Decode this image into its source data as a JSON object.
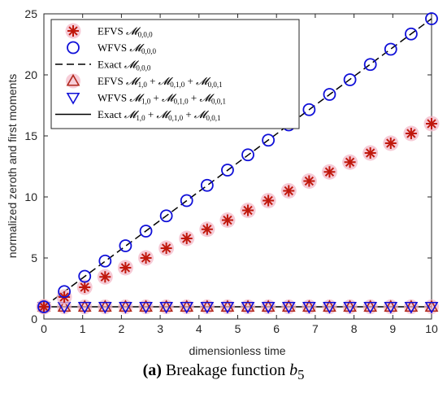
{
  "chart_data": {
    "type": "scatter",
    "xlabel": "dimensionless time",
    "ylabel": "normalized zeroth and first moments",
    "xlim": [
      0,
      10
    ],
    "ylim": [
      0,
      25
    ],
    "xticks": [
      0,
      1,
      2,
      3,
      4,
      5,
      6,
      7,
      8,
      9,
      10
    ],
    "yticks": [
      0,
      5,
      10,
      15,
      20,
      25
    ],
    "legend_position": "top-left",
    "series": [
      {
        "name": "EFVS 𝓜0,0,0",
        "marker": "asterisk",
        "color": "#c0180c",
        "x": [
          0,
          0.526,
          1.053,
          1.579,
          2.105,
          2.632,
          3.158,
          3.684,
          4.211,
          4.737,
          5.263,
          5.789,
          6.316,
          6.842,
          7.368,
          7.895,
          8.421,
          8.947,
          9.474,
          10
        ],
        "y": [
          1.0,
          1.8,
          2.6,
          3.45,
          4.2,
          5.0,
          5.8,
          6.6,
          7.35,
          8.1,
          8.9,
          9.7,
          10.5,
          11.3,
          12.05,
          12.85,
          13.6,
          14.4,
          15.2,
          16.0
        ]
      },
      {
        "name": "WFVS 𝓜0,0,0",
        "marker": "circle",
        "color": "#1010d8",
        "x": [
          0,
          0.526,
          1.053,
          1.579,
          2.105,
          2.632,
          3.158,
          3.684,
          4.211,
          4.737,
          5.263,
          5.789,
          6.316,
          6.842,
          7.368,
          7.895,
          8.421,
          8.947,
          9.474,
          10
        ],
        "y": [
          1.0,
          2.25,
          3.5,
          4.75,
          6.0,
          7.2,
          8.45,
          9.7,
          10.95,
          12.2,
          13.45,
          14.65,
          15.9,
          17.15,
          18.4,
          19.6,
          20.85,
          22.1,
          23.35,
          24.6
        ]
      },
      {
        "name": "Exact 𝓜0,0,0",
        "line": "dashed",
        "color": "#000000",
        "x": [
          0,
          10
        ],
        "y": [
          1.0,
          24.6
        ]
      },
      {
        "name": "EFVS 𝓜1,0 + 𝓜0,1,0 + 𝓜0,0,1",
        "marker": "triangle-up",
        "color": "#b0281c",
        "x": [
          0,
          0.526,
          1.053,
          1.579,
          2.105,
          2.632,
          3.158,
          3.684,
          4.211,
          4.737,
          5.263,
          5.789,
          6.316,
          6.842,
          7.368,
          7.895,
          8.421,
          8.947,
          9.474,
          10
        ],
        "y": [
          1,
          1,
          1,
          1,
          1,
          1,
          1,
          1,
          1,
          1,
          1,
          1,
          1,
          1,
          1,
          1,
          1,
          1,
          1,
          1
        ]
      },
      {
        "name": "WFVS 𝓜1,0 + 𝓜0,1,0 + 𝓜0,0,1",
        "marker": "triangle-down",
        "color": "#1010d8",
        "x": [
          0,
          0.526,
          1.053,
          1.579,
          2.105,
          2.632,
          3.158,
          3.684,
          4.211,
          4.737,
          5.263,
          5.789,
          6.316,
          6.842,
          7.368,
          7.895,
          8.421,
          8.947,
          9.474,
          10
        ],
        "y": [
          1,
          1,
          1,
          1,
          1,
          1,
          1,
          1,
          1,
          1,
          1,
          1,
          1,
          1,
          1,
          1,
          1,
          1,
          1,
          1
        ]
      },
      {
        "name": "Exact 𝓜1,0 + 𝓜0,1,0 + 𝓜0,0,1",
        "line": "solid",
        "color": "#000000",
        "x": [
          0,
          10
        ],
        "y": [
          1,
          1
        ]
      }
    ]
  },
  "legend": {
    "entries": [
      {
        "prefix": "EFVS ",
        "sub": "0,0,0",
        "rest": ""
      },
      {
        "prefix": "WFVS ",
        "sub": "0,0,0",
        "rest": ""
      },
      {
        "prefix": "Exact ",
        "sub": "0,0,0",
        "rest": ""
      },
      {
        "prefix": "EFVS ",
        "sub": "1,0",
        "rest": "+ ",
        "sub2": "0,1,0",
        "rest2": "+ ",
        "sub3": "0,0,1"
      },
      {
        "prefix": "WFVS ",
        "sub": "1,0",
        "rest": "+ ",
        "sub2": "0,1,0",
        "rest2": "+ ",
        "sub3": "0,0,1"
      },
      {
        "prefix": "Exact ",
        "sub": "1,0",
        "rest": "+ ",
        "sub2": "0,1,0",
        "rest2": "+ ",
        "sub3": "0,0,1"
      }
    ]
  },
  "caption": {
    "label": "(a)",
    "text": "Breakage function",
    "symbol": "b",
    "subscript": "5"
  }
}
